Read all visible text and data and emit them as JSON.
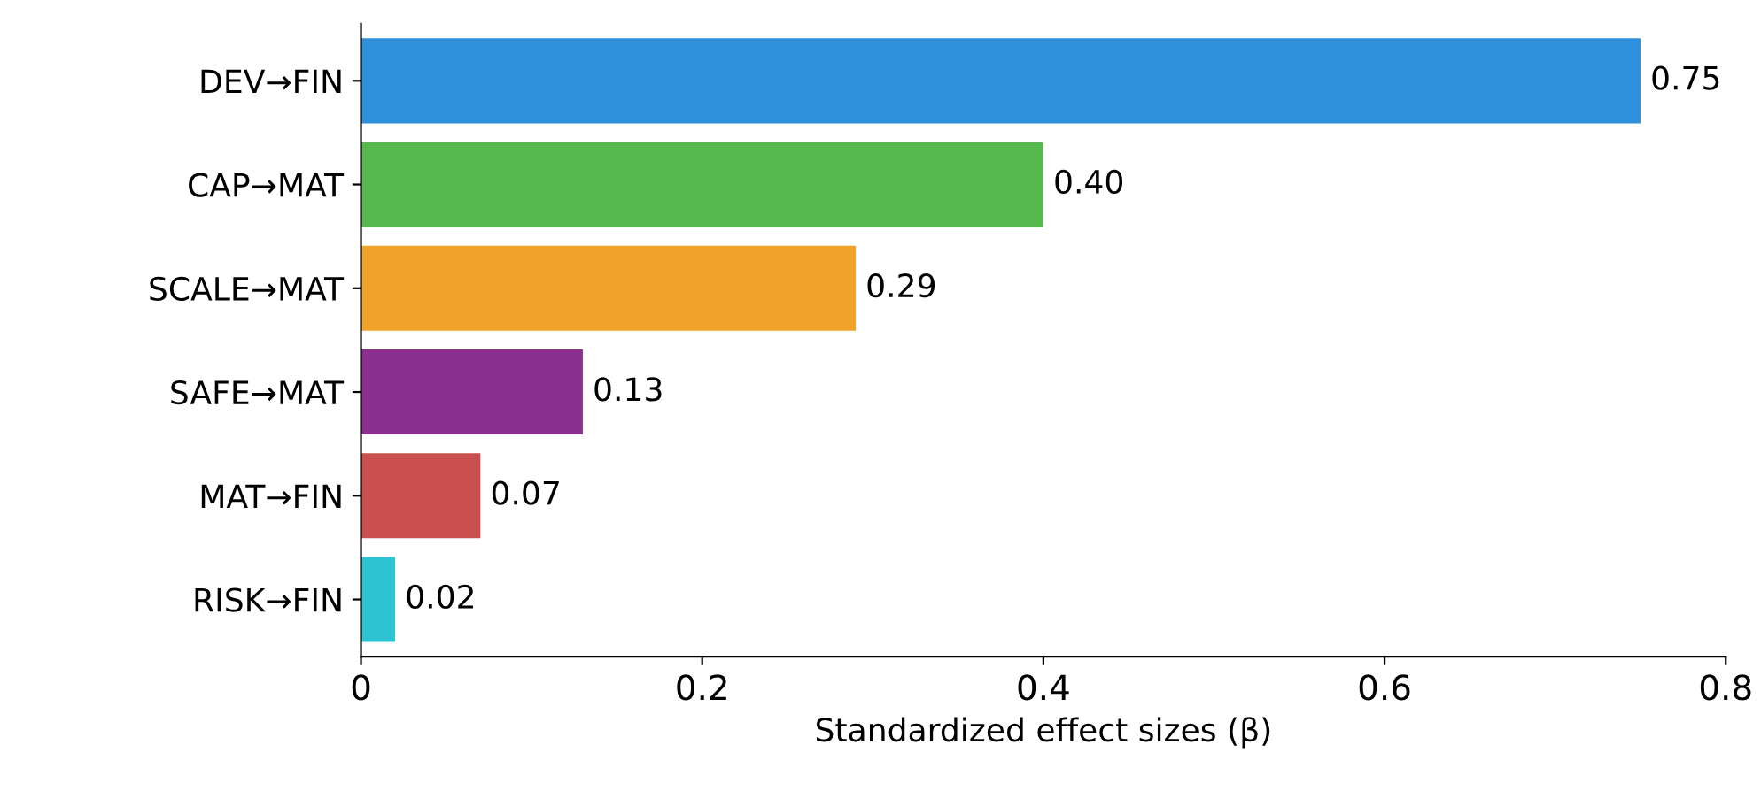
{
  "chart_data": {
    "type": "bar",
    "orientation": "horizontal",
    "xlabel": "Standardized effect sizes (β)",
    "categories": [
      "DEV→FIN",
      "CAP→MAT",
      "SCALE→MAT",
      "SAFE→MAT",
      "MAT→FIN",
      "RISK→FIN"
    ],
    "values": [
      0.75,
      0.4,
      0.29,
      0.13,
      0.07,
      0.02
    ],
    "value_labels": [
      "0.75",
      "0.40",
      "0.29",
      "0.13",
      "0.07",
      "0.02"
    ],
    "colors": [
      "#2e8fdb",
      "#57b84f",
      "#f0a22b",
      "#8a2f8e",
      "#c9504f",
      "#2ec3d3"
    ],
    "xlim": [
      0,
      0.8
    ],
    "xticks": [
      0,
      0.2,
      0.4,
      0.6,
      0.8
    ],
    "grid": false,
    "legend": false
  }
}
